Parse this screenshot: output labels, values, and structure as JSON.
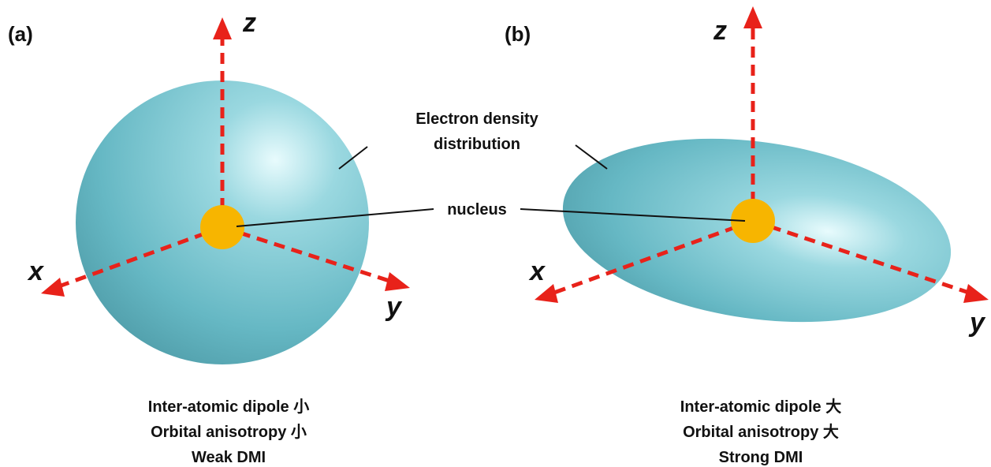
{
  "panels": [
    {
      "label": "(a)",
      "axes": {
        "x": "x",
        "y": "y",
        "z": "z"
      },
      "caption": [
        "Inter-atomic dipole 小",
        "Orbital anisotropy 小",
        "Weak DMI"
      ]
    },
    {
      "label": "(b)",
      "axes": {
        "x": "x",
        "y": "y",
        "z": "z"
      },
      "caption": [
        "Inter-atomic dipole 大",
        "Orbital anisotropy 大",
        "Strong DMI"
      ]
    }
  ],
  "annotations": {
    "density": [
      "Electron density",
      "distribution"
    ],
    "nucleus": "nucleus"
  }
}
